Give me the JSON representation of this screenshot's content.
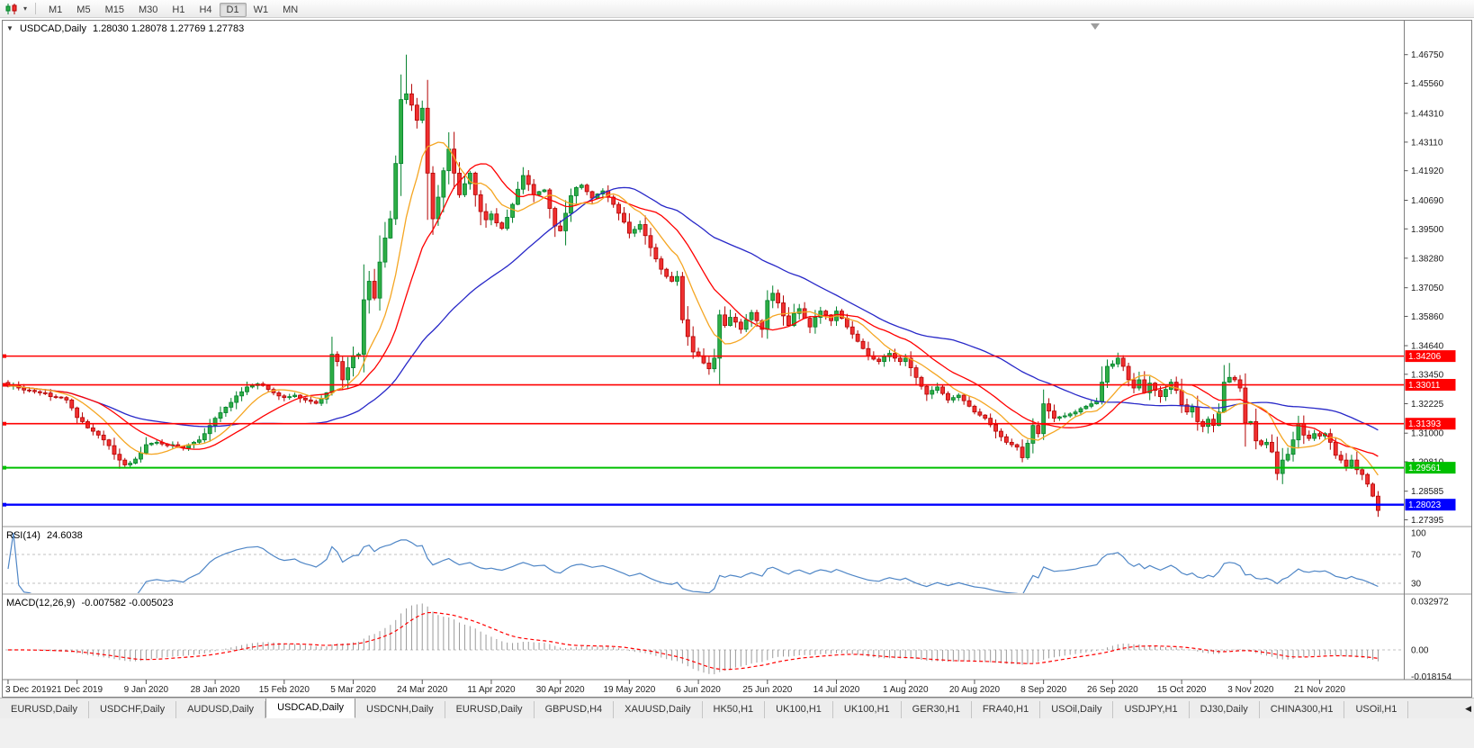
{
  "toolbar": {
    "timeframes": [
      "M1",
      "M5",
      "M15",
      "M30",
      "H1",
      "H4",
      "D1",
      "W1",
      "MN"
    ],
    "active": "D1"
  },
  "chart_header": {
    "expand_icon": "▼",
    "symbol_tf": "USDCAD,Daily",
    "ohlc_string": "1.28030 1.28078 1.27769 1.27783"
  },
  "chart_data": {
    "type": "candlestick",
    "symbol": "USDCAD",
    "timeframe": "Daily",
    "ohlc": {
      "open": 1.2803,
      "high": 1.28078,
      "low": 1.27769,
      "close": 1.27783
    },
    "y_axis_ticks": [
      "1.46750",
      "1.45560",
      "1.44310",
      "1.43110",
      "1.41920",
      "1.40690",
      "1.39500",
      "1.38280",
      "1.37050",
      "1.35860",
      "1.34640",
      "1.33450",
      "1.32225",
      "1.31000",
      "1.29810",
      "1.28585",
      "1.27395"
    ],
    "x_labels": [
      "3 Dec 2019",
      "21 Dec 2019",
      "9 Jan 2020",
      "28 Jan 2020",
      "15 Feb 2020",
      "5 Mar 2020",
      "24 Mar 2020",
      "11 Apr 2020",
      "30 Apr 2020",
      "19 May 2020",
      "6 Jun 2020",
      "25 Jun 2020",
      "14 Jul 2020",
      "1 Aug 2020",
      "20 Aug 2020",
      "8 Sep 2020",
      "26 Sep 2020",
      "15 Oct 2020",
      "3 Nov 2020",
      "21 Nov 2020"
    ],
    "x_label_step": 13,
    "candle_count": 259,
    "price_top": 1.482,
    "price_bottom": 1.2715,
    "close_anchors": [
      [
        0,
        1.3295
      ],
      [
        2,
        1.3288
      ],
      [
        4,
        1.3278
      ],
      [
        6,
        1.3268
      ],
      [
        8,
        1.3252
      ],
      [
        10,
        1.3248
      ],
      [
        11,
        1.3238
      ],
      [
        12,
        1.3205
      ],
      [
        13,
        1.3165
      ],
      [
        14,
        1.3148
      ],
      [
        15,
        1.3122
      ],
      [
        16,
        1.3108
      ],
      [
        17,
        1.3092
      ],
      [
        18,
        1.3072
      ],
      [
        19,
        1.3048
      ],
      [
        20,
        1.3012
      ],
      [
        21,
        1.2988
      ],
      [
        22,
        1.2968
      ],
      [
        23,
        1.2975
      ],
      [
        24,
        1.2992
      ],
      [
        25,
        1.3018
      ],
      [
        26,
        1.3052
      ],
      [
        27,
        1.3058
      ],
      [
        28,
        1.3062
      ],
      [
        29,
        1.3055
      ],
      [
        30,
        1.3048
      ],
      [
        31,
        1.3052
      ],
      [
        32,
        1.3045
      ],
      [
        33,
        1.3038
      ],
      [
        34,
        1.3052
      ],
      [
        35,
        1.3062
      ],
      [
        36,
        1.3072
      ],
      [
        37,
        1.3098
      ],
      [
        38,
        1.3132
      ],
      [
        39,
        1.3162
      ],
      [
        40,
        1.3185
      ],
      [
        41,
        1.3208
      ],
      [
        42,
        1.3228
      ],
      [
        43,
        1.3255
      ],
      [
        44,
        1.3272
      ],
      [
        45,
        1.3292
      ],
      [
        46,
        1.3298
      ],
      [
        47,
        1.3305
      ],
      [
        48,
        1.3298
      ],
      [
        49,
        1.3282
      ],
      [
        50,
        1.3268
      ],
      [
        51,
        1.3255
      ],
      [
        52,
        1.3248
      ],
      [
        53,
        1.3252
      ],
      [
        54,
        1.3258
      ],
      [
        55,
        1.3246
      ],
      [
        56,
        1.3238
      ],
      [
        57,
        1.3232
      ],
      [
        58,
        1.3224
      ],
      [
        59,
        1.3242
      ],
      [
        60,
        1.3268
      ],
      [
        61,
        1.3428
      ],
      [
        62,
        1.3398
      ],
      [
        63,
        1.3322
      ],
      [
        64,
        1.3372
      ],
      [
        65,
        1.3422
      ],
      [
        66,
        1.3428
      ],
      [
        67,
        1.3655
      ],
      [
        68,
        1.3732
      ],
      [
        69,
        1.3662
      ],
      [
        70,
        1.3812
      ],
      [
        71,
        1.3912
      ],
      [
        72,
        1.3992
      ],
      [
        73,
        1.4222
      ],
      [
        74,
        1.4488
      ],
      [
        75,
        1.4512
      ],
      [
        76,
        1.4465
      ],
      [
        77,
        1.4402
      ],
      [
        78,
        1.4452
      ],
      [
        79,
        1.4182
      ],
      [
        80,
        1.3992
      ],
      [
        81,
        1.4082
      ],
      [
        82,
        1.4192
      ],
      [
        83,
        1.4282
      ],
      [
        84,
        1.4182
      ],
      [
        85,
        1.4092
      ],
      [
        86,
        1.4138
      ],
      [
        87,
        1.4182
      ],
      [
        88,
        1.4092
      ],
      [
        89,
        1.4022
      ],
      [
        90,
        1.3988
      ],
      [
        91,
        1.4012
      ],
      [
        92,
        1.3975
      ],
      [
        93,
        1.3952
      ],
      [
        94,
        1.3998
      ],
      [
        95,
        1.4052
      ],
      [
        96,
        1.4115
      ],
      [
        97,
        1.4172
      ],
      [
        98,
        1.4135
      ],
      [
        99,
        1.4092
      ],
      [
        100,
        1.4105
      ],
      [
        101,
        1.4112
      ],
      [
        102,
        1.4035
      ],
      [
        103,
        1.3962
      ],
      [
        104,
        1.3942
      ],
      [
        105,
        1.4015
      ],
      [
        106,
        1.4088
      ],
      [
        107,
        1.4122
      ],
      [
        108,
        1.4132
      ],
      [
        109,
        1.4105
      ],
      [
        110,
        1.4078
      ],
      [
        111,
        1.4095
      ],
      [
        112,
        1.4108
      ],
      [
        113,
        1.4082
      ],
      [
        114,
        1.4052
      ],
      [
        115,
        1.4015
      ],
      [
        116,
        1.3978
      ],
      [
        117,
        1.3932
      ],
      [
        118,
        1.3948
      ],
      [
        119,
        1.3968
      ],
      [
        120,
        1.3922
      ],
      [
        121,
        1.3872
      ],
      [
        122,
        1.3825
      ],
      [
        123,
        1.3782
      ],
      [
        124,
        1.3752
      ],
      [
        125,
        1.3732
      ],
      [
        126,
        1.3752
      ],
      [
        127,
        1.3572
      ],
      [
        128,
        1.3502
      ],
      [
        129,
        1.3438
      ],
      [
        130,
        1.3422
      ],
      [
        131,
        1.3392
      ],
      [
        132,
        1.3368
      ],
      [
        133,
        1.3412
      ],
      [
        134,
        1.3592
      ],
      [
        135,
        1.3548
      ],
      [
        136,
        1.3582
      ],
      [
        137,
        1.3562
      ],
      [
        138,
        1.3532
      ],
      [
        139,
        1.3572
      ],
      [
        140,
        1.3602
      ],
      [
        141,
        1.3568
      ],
      [
        142,
        1.3532
      ],
      [
        143,
        1.3652
      ],
      [
        144,
        1.3682
      ],
      [
        145,
        1.3642
      ],
      [
        146,
        1.3588
      ],
      [
        147,
        1.3548
      ],
      [
        148,
        1.3598
      ],
      [
        149,
        1.3618
      ],
      [
        150,
        1.3578
      ],
      [
        151,
        1.3542
      ],
      [
        152,
        1.3582
      ],
      [
        153,
        1.3608
      ],
      [
        154,
        1.3592
      ],
      [
        155,
        1.3568
      ],
      [
        156,
        1.3608
      ],
      [
        157,
        1.3578
      ],
      [
        158,
        1.3542
      ],
      [
        159,
        1.3512
      ],
      [
        160,
        1.3482
      ],
      [
        161,
        1.3452
      ],
      [
        162,
        1.3422
      ],
      [
        163,
        1.3408
      ],
      [
        164,
        1.3398
      ],
      [
        165,
        1.3418
      ],
      [
        166,
        1.3432
      ],
      [
        167,
        1.3412
      ],
      [
        168,
        1.3398
      ],
      [
        169,
        1.3412
      ],
      [
        170,
        1.3372
      ],
      [
        171,
        1.3332
      ],
      [
        172,
        1.3295
      ],
      [
        173,
        1.3262
      ],
      [
        174,
        1.3278
      ],
      [
        175,
        1.3292
      ],
      [
        176,
        1.3265
      ],
      [
        177,
        1.3238
      ],
      [
        178,
        1.3248
      ],
      [
        179,
        1.3258
      ],
      [
        180,
        1.3235
      ],
      [
        181,
        1.3212
      ],
      [
        182,
        1.3188
      ],
      [
        183,
        1.3175
      ],
      [
        184,
        1.3162
      ],
      [
        185,
        1.3135
      ],
      [
        186,
        1.3108
      ],
      [
        187,
        1.3085
      ],
      [
        188,
        1.3062
      ],
      [
        189,
        1.3052
      ],
      [
        190,
        1.3042
      ],
      [
        191,
        1.2998
      ],
      [
        192,
        1.3058
      ],
      [
        193,
        1.3132
      ],
      [
        194,
        1.3098
      ],
      [
        195,
        1.3222
      ],
      [
        196,
        1.3192
      ],
      [
        197,
        1.3162
      ],
      [
        198,
        1.3168
      ],
      [
        199,
        1.3172
      ],
      [
        200,
        1.318
      ],
      [
        201,
        1.3188
      ],
      [
        202,
        1.3202
      ],
      [
        203,
        1.3212
      ],
      [
        204,
        1.3222
      ],
      [
        205,
        1.3232
      ],
      [
        206,
        1.3312
      ],
      [
        207,
        1.3378
      ],
      [
        208,
        1.3388
      ],
      [
        209,
        1.3412
      ],
      [
        210,
        1.3378
      ],
      [
        211,
        1.3322
      ],
      [
        212,
        1.3288
      ],
      [
        213,
        1.3322
      ],
      [
        214,
        1.3268
      ],
      [
        215,
        1.3308
      ],
      [
        216,
        1.3278
      ],
      [
        217,
        1.3252
      ],
      [
        218,
        1.3282
      ],
      [
        219,
        1.3312
      ],
      [
        220,
        1.3278
      ],
      [
        221,
        1.3218
      ],
      [
        222,
        1.3188
      ],
      [
        223,
        1.3208
      ],
      [
        224,
        1.3148
      ],
      [
        225,
        1.3128
      ],
      [
        226,
        1.3158
      ],
      [
        227,
        1.3132
      ],
      [
        228,
        1.3188
      ],
      [
        229,
        1.3312
      ],
      [
        230,
        1.3332
      ],
      [
        231,
        1.3322
      ],
      [
        232,
        1.3288
      ],
      [
        233,
        1.3142
      ],
      [
        234,
        1.3148
      ],
      [
        235,
        1.3068
      ],
      [
        236,
        1.3052
      ],
      [
        237,
        1.3062
      ],
      [
        238,
        1.3022
      ],
      [
        239,
        1.2932
      ],
      [
        240,
        1.2988
      ],
      [
        241,
        1.3012
      ],
      [
        242,
        1.3072
      ],
      [
        243,
        1.3138
      ],
      [
        244,
        1.3092
      ],
      [
        245,
        1.3078
      ],
      [
        246,
        1.3098
      ],
      [
        247,
        1.3088
      ],
      [
        248,
        1.3098
      ],
      [
        249,
        1.3062
      ],
      [
        250,
        1.3008
      ],
      [
        251,
        1.2988
      ],
      [
        252,
        1.2962
      ],
      [
        253,
        1.2988
      ],
      [
        254,
        1.2948
      ],
      [
        255,
        1.2928
      ],
      [
        256,
        1.2888
      ],
      [
        257,
        1.2838
      ],
      [
        258,
        1.27783
      ]
    ],
    "wick_overrides": {
      "21": {
        "low": 1.2952
      },
      "61": {
        "high": 1.3468
      },
      "75": {
        "high": 1.4675
      },
      "83": {
        "high": 1.4352
      },
      "132": {
        "low": 1.3356
      },
      "191": {
        "low": 1.299
      },
      "209": {
        "high": 1.3422
      },
      "230": {
        "high": 1.3392
      },
      "239": {
        "low": 1.2926
      },
      "258": {
        "low": 1.2768
      }
    },
    "levels": [
      {
        "value": 1.34206,
        "label": "1.34206",
        "color": "#ff0000",
        "width": 1.6
      },
      {
        "value": 1.33011,
        "label": "1.33011",
        "color": "#ff0000",
        "width": 1.6
      },
      {
        "value": 1.31393,
        "label": "1.31393",
        "color": "#ff0000",
        "width": 1.6
      },
      {
        "value": 1.29561,
        "label": "1.29561",
        "color": "#00c000",
        "width": 2
      },
      {
        "value": 1.28023,
        "label": "1.28023",
        "color": "#0000ff",
        "width": 2.4
      }
    ],
    "moving_averages": [
      {
        "period": 45,
        "color": "#2828c8"
      },
      {
        "period": 18,
        "color": "#ff0000"
      },
      {
        "period": 9,
        "color": "#f5a623"
      }
    ],
    "indicators": {
      "rsi": {
        "label": "RSI(14)",
        "value": "24.6038",
        "line_color": "#4f86c6",
        "levels": [
          {
            "value": 100,
            "label": "100"
          },
          {
            "value": 70,
            "label": "70"
          },
          {
            "value": 30,
            "label": "30"
          }
        ]
      },
      "macd": {
        "label": "MACD(12,26,9)",
        "values": "-0.007582 -0.005023",
        "hist_color": "#9a9a9a",
        "signal_color": "#ff0000",
        "axis_labels": [
          {
            "value": 0.032972,
            "label": "0.032972"
          },
          {
            "value": 0,
            "label": "0.00"
          },
          {
            "value": -0.018154,
            "label": "-0.018154"
          }
        ]
      }
    },
    "candle_colors": {
      "up_fill": "#2eae45",
      "up_stroke": "#00802b",
      "down_fill": "#f03030",
      "down_stroke": "#b30000"
    }
  },
  "tabs": {
    "items": [
      "EURUSD,Daily",
      "USDCHF,Daily",
      "AUDUSD,Daily",
      "USDCAD,Daily",
      "USDCNH,Daily",
      "EURUSD,Daily",
      "GBPUSD,H4",
      "XAUUSD,Daily",
      "HK50,H1",
      "UK100,H1",
      "UK100,H1",
      "GER30,H1",
      "FRA40,H1",
      "USOil,Daily",
      "USDJPY,H1",
      "DJ30,Daily",
      "CHINA300,H1",
      "USOil,H1"
    ],
    "active_index": 3,
    "scroll_icon": "◀"
  }
}
